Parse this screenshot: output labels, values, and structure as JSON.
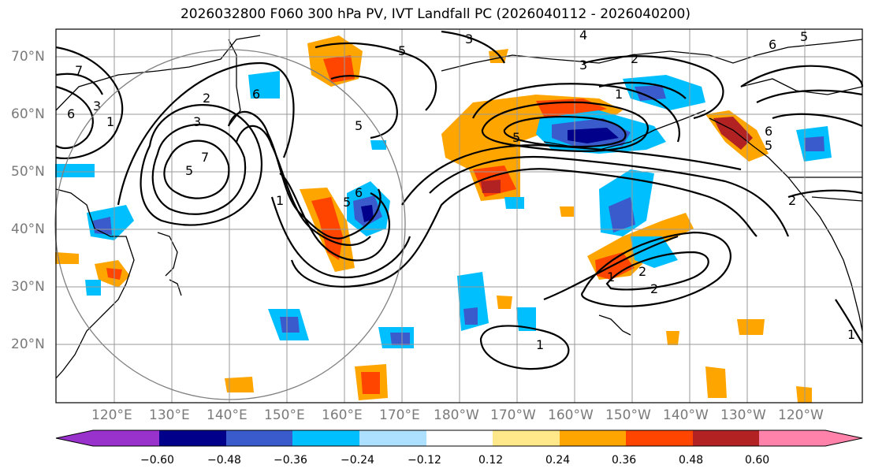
{
  "title": "2026032800 F060 300 hPa PV, IVT Landfall PC (2026040112 - 2026040200)",
  "lat_labels": [
    "70°N",
    "60°N",
    "50°N",
    "40°N",
    "30°N",
    "20°N"
  ],
  "lon_labels": [
    "120°E",
    "130°E",
    "140°E",
    "150°E",
    "160°E",
    "170°E",
    "180°W",
    "170°W",
    "160°W",
    "150°W",
    "140°W",
    "130°W",
    "120°W"
  ],
  "colorbar": {
    "colors": [
      "#9932CC",
      "#00008B",
      "#3A5BCB",
      "#00BFFF",
      "#ADDFFF",
      "#FFFFFF",
      "#FFE88A",
      "#FFA500",
      "#FF4500",
      "#B22222",
      "#FF82AB"
    ],
    "ticks": [
      "−0.60",
      "−0.48",
      "−0.36",
      "−0.24",
      "−0.12",
      "0.12",
      "0.24",
      "0.36",
      "0.48",
      "0.60"
    ]
  },
  "contour_labels": [
    "1",
    "2",
    "3",
    "4",
    "5",
    "6",
    "7"
  ],
  "colors": {
    "positive": "#FFA500",
    "negative": "#00BFFF",
    "contour": "#000000",
    "grid": "#999999"
  }
}
